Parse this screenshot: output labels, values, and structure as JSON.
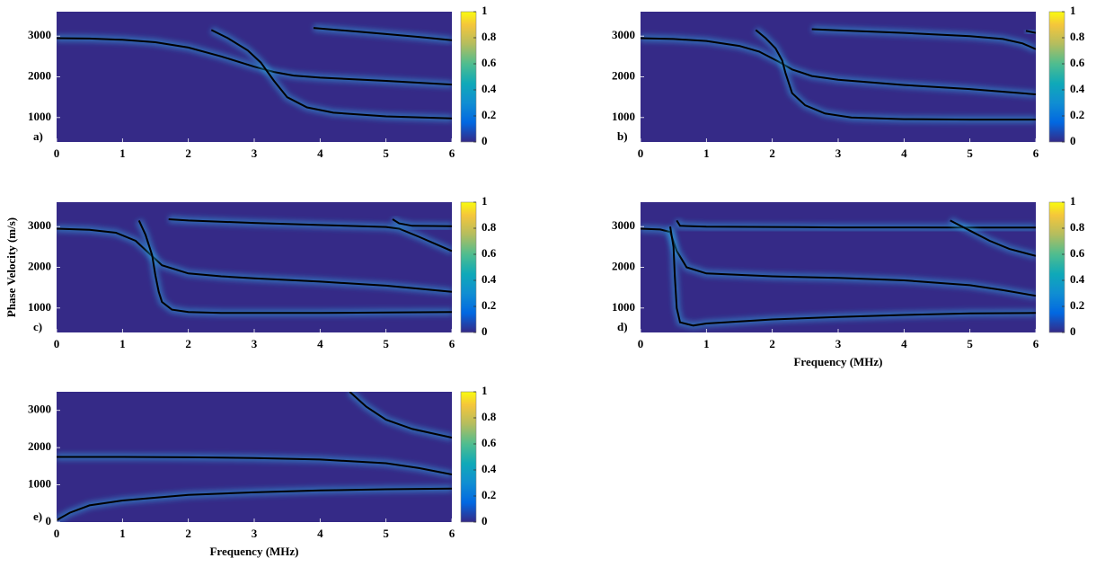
{
  "chart_data": [
    {
      "type": "line",
      "panel_label": "a)",
      "background": "#352a87",
      "xlim": [
        0,
        6
      ],
      "xticks": [
        0,
        1,
        2,
        3,
        4,
        5,
        6
      ],
      "ylim": [
        400,
        3600
      ],
      "yticks": [
        1000,
        2000,
        3000
      ],
      "colorbar": {
        "lim": [
          0,
          1
        ],
        "ticks": [
          0,
          0.2,
          0.4,
          0.6,
          0.8,
          1
        ]
      },
      "series": [
        {
          "color": "#000000",
          "x": [
            0,
            0.5,
            1,
            1.5,
            2,
            2.5,
            3,
            3.3,
            3.6,
            4,
            5,
            6
          ],
          "values": [
            2950,
            2940,
            2910,
            2850,
            2720,
            2500,
            2250,
            2120,
            2030,
            1980,
            1900,
            1810
          ]
        },
        {
          "color": "#000000",
          "x": [
            2.35,
            2.6,
            2.9,
            3.1,
            3.3,
            3.5,
            3.8,
            4.2,
            5,
            6
          ],
          "values": [
            3150,
            2950,
            2650,
            2350,
            1900,
            1500,
            1250,
            1120,
            1030,
            980
          ]
        },
        {
          "color": "#000000",
          "x": [
            3.9,
            4.5,
            5,
            5.5,
            6
          ],
          "values": [
            3200,
            3120,
            3050,
            2980,
            2900
          ]
        }
      ]
    },
    {
      "type": "line",
      "panel_label": "b)",
      "background": "#352a87",
      "xlim": [
        0,
        6
      ],
      "xticks": [
        0,
        1,
        2,
        3,
        4,
        5,
        6
      ],
      "ylim": [
        400,
        3600
      ],
      "yticks": [
        1000,
        2000,
        3000
      ],
      "colorbar": {
        "lim": [
          0,
          1
        ],
        "ticks": [
          0,
          0.2,
          0.4,
          0.6,
          0.8,
          1
        ]
      },
      "series": [
        {
          "color": "#000000",
          "x": [
            0,
            0.5,
            1,
            1.5,
            1.8,
            2.1,
            2.3,
            2.6,
            3,
            4,
            5,
            6
          ],
          "values": [
            2950,
            2930,
            2880,
            2760,
            2620,
            2370,
            2180,
            2020,
            1930,
            1800,
            1700,
            1570
          ]
        },
        {
          "color": "#000000",
          "x": [
            1.75,
            1.9,
            2.05,
            2.15,
            2.2,
            2.3,
            2.5,
            2.8,
            3.2,
            4,
            5,
            6
          ],
          "values": [
            3150,
            2950,
            2700,
            2400,
            2100,
            1600,
            1300,
            1100,
            1000,
            960,
            950,
            950
          ]
        },
        {
          "color": "#000000",
          "x": [
            2.6,
            3,
            4,
            5,
            5.5,
            5.8,
            6
          ],
          "values": [
            3170,
            3140,
            3080,
            3000,
            2930,
            2820,
            2680
          ]
        },
        {
          "color": "#000000",
          "x": [
            5.85,
            6
          ],
          "values": [
            3130,
            3080
          ]
        }
      ]
    },
    {
      "type": "line",
      "panel_label": "c)",
      "background": "#352a87",
      "ylabel": "Phase Velocity (m/s)",
      "xlim": [
        0,
        6
      ],
      "xticks": [
        0,
        1,
        2,
        3,
        4,
        5,
        6
      ],
      "ylim": [
        400,
        3600
      ],
      "yticks": [
        1000,
        2000,
        3000
      ],
      "colorbar": {
        "lim": [
          0,
          1
        ],
        "ticks": [
          0,
          0.2,
          0.4,
          0.6,
          0.8,
          1
        ]
      },
      "series": [
        {
          "color": "#000000",
          "x": [
            0,
            0.5,
            0.9,
            1.2,
            1.4,
            1.6,
            2,
            2.5,
            3,
            4,
            5,
            6
          ],
          "values": [
            2950,
            2920,
            2850,
            2650,
            2350,
            2050,
            1850,
            1780,
            1730,
            1650,
            1550,
            1400
          ]
        },
        {
          "color": "#000000",
          "x": [
            1.25,
            1.35,
            1.45,
            1.5,
            1.55,
            1.6,
            1.75,
            2,
            2.5,
            3,
            4,
            5,
            6
          ],
          "values": [
            3150,
            2800,
            2300,
            1800,
            1400,
            1150,
            960,
            900,
            880,
            880,
            880,
            890,
            900
          ]
        },
        {
          "color": "#000000",
          "x": [
            1.7,
            2,
            3,
            4,
            5,
            5.2,
            5.5,
            6
          ],
          "values": [
            3180,
            3150,
            3090,
            3040,
            2990,
            2950,
            2750,
            2400
          ]
        },
        {
          "color": "#000000",
          "x": [
            5.1,
            5.2,
            5.4,
            6
          ],
          "values": [
            3180,
            3080,
            3020,
            3010
          ]
        }
      ]
    },
    {
      "type": "line",
      "panel_label": "d)",
      "background": "#352a87",
      "xlabel": "Frequency (MHz)",
      "xlim": [
        0,
        6
      ],
      "xticks": [
        0,
        1,
        2,
        3,
        4,
        5,
        6
      ],
      "ylim": [
        400,
        3600
      ],
      "yticks": [
        1000,
        2000,
        3000
      ],
      "colorbar": {
        "lim": [
          0,
          1
        ],
        "ticks": [
          0,
          0.2,
          0.4,
          0.6,
          0.8,
          1
        ]
      },
      "series": [
        {
          "color": "#000000",
          "x": [
            0,
            0.3,
            0.45,
            0.55,
            0.7,
            1,
            2,
            3,
            4,
            5,
            5.5,
            6
          ],
          "values": [
            2950,
            2930,
            2870,
            2400,
            2000,
            1850,
            1780,
            1740,
            1680,
            1560,
            1440,
            1300
          ]
        },
        {
          "color": "#000000",
          "x": [
            0.45,
            0.5,
            0.52,
            0.55,
            0.6,
            0.8,
            1,
            2,
            3,
            4,
            5,
            6
          ],
          "values": [
            3000,
            2500,
            1800,
            1000,
            650,
            570,
            620,
            720,
            780,
            830,
            870,
            880
          ]
        },
        {
          "color": "#000000",
          "x": [
            0.55,
            0.6,
            1,
            2,
            3,
            4,
            5,
            6
          ],
          "values": [
            3150,
            3020,
            3000,
            2990,
            2980,
            2980,
            2975,
            2975
          ]
        },
        {
          "color": "#000000",
          "x": [
            4.7,
            5,
            5.3,
            5.6,
            6
          ],
          "values": [
            3150,
            2900,
            2650,
            2450,
            2280
          ]
        }
      ]
    },
    {
      "type": "line",
      "panel_label": "e)",
      "background": "#352a87",
      "xlabel": "Frequency (MHz)",
      "xlim": [
        0,
        6
      ],
      "xticks": [
        0,
        1,
        2,
        3,
        4,
        5,
        6
      ],
      "ylim": [
        0,
        3500
      ],
      "yticks": [
        0,
        1000,
        2000,
        3000
      ],
      "colorbar": {
        "lim": [
          0,
          1
        ],
        "ticks": [
          0,
          0.2,
          0.4,
          0.6,
          0.8,
          1
        ]
      },
      "series": [
        {
          "color": "#000000",
          "x": [
            0,
            0.2,
            0.5,
            1,
            2,
            3,
            4,
            5,
            6
          ],
          "values": [
            50,
            250,
            450,
            580,
            730,
            800,
            850,
            880,
            900
          ]
        },
        {
          "color": "#000000",
          "x": [
            0,
            1,
            2,
            3,
            4,
            5,
            5.5,
            6
          ],
          "values": [
            1750,
            1750,
            1740,
            1720,
            1680,
            1580,
            1450,
            1280
          ]
        },
        {
          "color": "#000000",
          "x": [
            4.45,
            4.7,
            5,
            5.4,
            6
          ],
          "values": [
            3500,
            3100,
            2750,
            2500,
            2270
          ]
        }
      ]
    }
  ]
}
